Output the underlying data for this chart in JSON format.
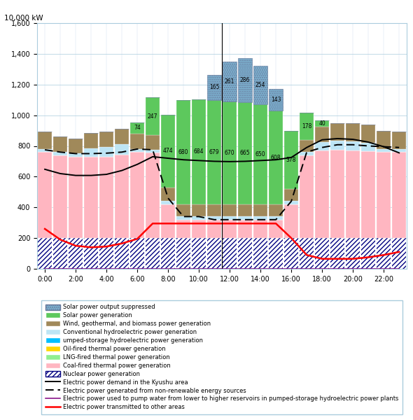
{
  "hours": [
    0,
    1,
    2,
    3,
    4,
    5,
    6,
    7,
    8,
    9,
    10,
    11,
    12,
    13,
    14,
    15,
    16,
    17,
    18,
    19,
    20,
    21,
    22,
    23
  ],
  "xlabels": [
    "0:00",
    "2:00",
    "4:00",
    "6:00",
    "8:00",
    "10:00",
    "12:00",
    "14:00",
    "16:00",
    "18:00",
    "20:00",
    "22:00"
  ],
  "ylim": [
    0,
    1600
  ],
  "yticks": [
    0,
    200,
    400,
    600,
    800,
    1000,
    1200,
    1400,
    1600
  ],
  "nuclear": [
    200,
    200,
    200,
    200,
    200,
    200,
    200,
    200,
    200,
    200,
    200,
    200,
    200,
    200,
    200,
    200,
    200,
    200,
    200,
    200,
    200,
    200,
    200,
    200
  ],
  "coal": [
    560,
    540,
    530,
    530,
    530,
    545,
    560,
    555,
    220,
    120,
    120,
    120,
    120,
    120,
    120,
    120,
    220,
    540,
    570,
    575,
    570,
    565,
    560,
    560
  ],
  "lng": [
    0,
    0,
    0,
    0,
    0,
    0,
    0,
    0,
    0,
    0,
    0,
    0,
    0,
    0,
    0,
    0,
    0,
    0,
    0,
    0,
    0,
    0,
    0,
    0
  ],
  "oil": [
    0,
    0,
    0,
    0,
    0,
    0,
    0,
    0,
    0,
    0,
    0,
    0,
    0,
    0,
    0,
    0,
    0,
    0,
    0,
    0,
    0,
    0,
    0,
    0
  ],
  "pumped_hydro": [
    0,
    0,
    0,
    0,
    0,
    0,
    0,
    0,
    0,
    0,
    0,
    0,
    0,
    0,
    0,
    0,
    0,
    0,
    0,
    0,
    0,
    0,
    0,
    0
  ],
  "conv_hydro": [
    20,
    20,
    20,
    55,
    65,
    65,
    20,
    20,
    20,
    20,
    20,
    20,
    20,
    20,
    20,
    20,
    20,
    20,
    55,
    60,
    60,
    55,
    20,
    20
  ],
  "wind_geo": [
    115,
    100,
    100,
    100,
    100,
    100,
    100,
    95,
    90,
    80,
    80,
    80,
    80,
    80,
    80,
    80,
    80,
    80,
    100,
    115,
    120,
    120,
    120,
    115
  ],
  "solar": [
    0,
    0,
    0,
    0,
    0,
    0,
    74,
    247,
    474,
    680,
    684,
    679,
    670,
    665,
    650,
    608,
    378,
    178,
    40,
    0,
    0,
    0,
    0,
    0
  ],
  "solar_suppressed": [
    0,
    0,
    0,
    0,
    0,
    0,
    0,
    0,
    0,
    0,
    0,
    165,
    261,
    286,
    254,
    143,
    0,
    0,
    0,
    0,
    0,
    0,
    0,
    0
  ],
  "demand_line": [
    648,
    620,
    608,
    608,
    615,
    640,
    680,
    730,
    720,
    710,
    705,
    700,
    698,
    700,
    705,
    710,
    725,
    790,
    840,
    848,
    843,
    825,
    795,
    755
  ],
  "nonrenewable_line": [
    775,
    760,
    750,
    750,
    753,
    760,
    780,
    775,
    460,
    340,
    340,
    320,
    320,
    320,
    320,
    320,
    440,
    760,
    790,
    808,
    808,
    800,
    795,
    790
  ],
  "pumping_line": [
    0,
    0,
    0,
    0,
    0,
    0,
    0,
    0,
    0,
    0,
    0,
    0,
    0,
    0,
    0,
    0,
    0,
    0,
    0,
    0,
    0,
    0,
    0,
    0
  ],
  "transmit_line": [
    260,
    190,
    150,
    140,
    145,
    165,
    195,
    295,
    295,
    295,
    295,
    295,
    295,
    295,
    295,
    295,
    200,
    90,
    65,
    65,
    65,
    75,
    90,
    110
  ],
  "bar_width": 0.92,
  "color_nuclear_fill": "#FFFFFF",
  "color_nuclear_edge": "#000080",
  "color_coal": "#FFB6C1",
  "color_lng": "#90EE90",
  "color_oil": "#FFD700",
  "color_pumped_hydro": "#00BFFF",
  "color_conv_hydro": "#BDE5F5",
  "color_wind_geo": "#A0895A",
  "color_solar": "#5DC85D",
  "color_solar_suppressed": "#7EB6D4",
  "fig_width": 5.9,
  "fig_height": 6.0,
  "dpi": 100,
  "ylabel": "10,000 kW",
  "solar_labels": {
    "6": "74",
    "7": "247",
    "8": "474",
    "9": "680",
    "10": "684",
    "11": "679",
    "12": "670",
    "13": "665",
    "14": "650",
    "15": "608",
    "16": "378",
    "17": "178",
    "18": "40"
  },
  "suppressed_labels": {
    "11": "165",
    "12": "261",
    "13": "286",
    "14": "254",
    "15": "143"
  }
}
